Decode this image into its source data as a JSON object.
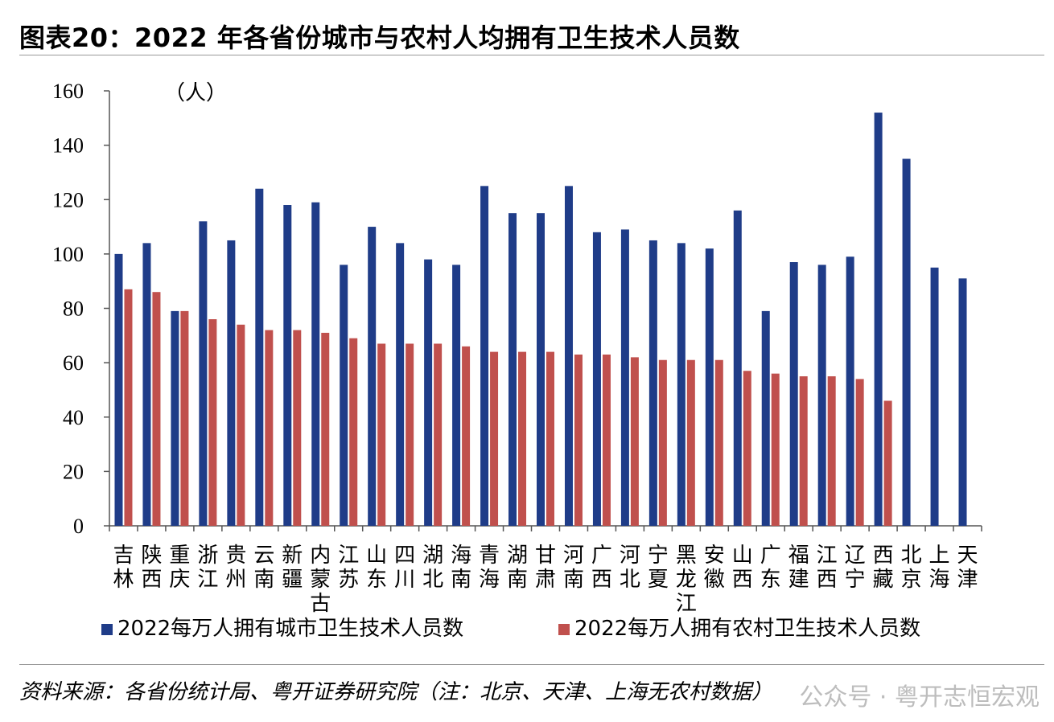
{
  "figure": {
    "title": "图表20：2022 年各省份城市与农村人均拥有卫生技术人员数",
    "source": "资料来源：各省份统计局、粤开证券研究院（注：北京、天津、上海无农村数据）",
    "watermark": "公众号 · 粤开志恒宏观"
  },
  "chart_data": {
    "type": "bar",
    "unit_label": "（人）",
    "ylim": [
      0,
      160
    ],
    "yticks": [
      0,
      20,
      40,
      60,
      80,
      100,
      120,
      140,
      160
    ],
    "grid": false,
    "legend_position": "bottom",
    "categories": [
      "吉林",
      "陕西",
      "重庆",
      "浙江",
      "贵州",
      "云南",
      "新疆",
      "内蒙古",
      "江苏",
      "山东",
      "四川",
      "湖北",
      "海南",
      "青海",
      "湖南",
      "甘肃",
      "河南",
      "广西",
      "河北",
      "宁夏",
      "黑龙江",
      "安徽",
      "山西",
      "广东",
      "福建",
      "江西",
      "辽宁",
      "西藏",
      "北京",
      "上海",
      "天津"
    ],
    "series": [
      {
        "name": "2022每万人拥有城市卫生技术人员数",
        "color": "#1F3C88",
        "values": [
          100,
          104,
          79,
          112,
          105,
          124,
          118,
          119,
          96,
          110,
          104,
          98,
          96,
          125,
          115,
          115,
          125,
          108,
          109,
          105,
          104,
          102,
          116,
          79,
          97,
          96,
          99,
          152,
          135,
          95,
          91
        ]
      },
      {
        "name": "2022每万人拥有农村卫生技术人员数",
        "color": "#C0504D",
        "values": [
          87,
          86,
          79,
          76,
          74,
          72,
          72,
          71,
          69,
          67,
          67,
          67,
          66,
          64,
          64,
          64,
          63,
          63,
          62,
          61,
          61,
          61,
          57,
          56,
          55,
          55,
          54,
          46,
          null,
          null,
          null
        ]
      }
    ]
  }
}
